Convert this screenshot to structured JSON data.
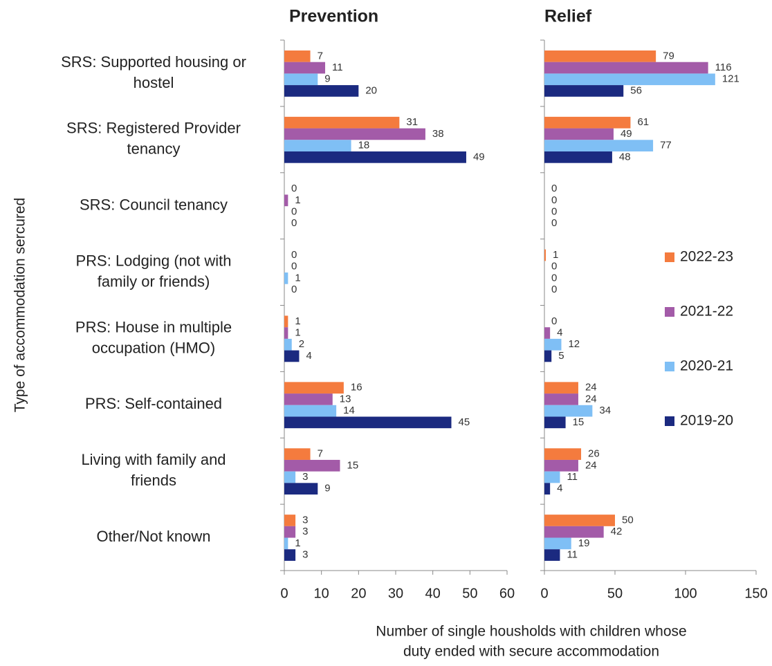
{
  "chart_data": [
    {
      "type": "bar",
      "orientation": "horizontal",
      "title": "Prevention",
      "ylabel": "Type of accommodation sercured",
      "xlabel": [
        "Number of single  housholds with children whose",
        "duty ended with secure accommodation"
      ],
      "categories": [
        [
          "SRS: Supported housing or",
          "hostel"
        ],
        [
          "SRS: Registered Provider",
          "tenancy"
        ],
        [
          "SRS: Council tenancy"
        ],
        [
          "PRS: Lodging (not with",
          "family or friends)"
        ],
        [
          "PRS: House in multiple",
          "occupation (HMO)"
        ],
        [
          "PRS: Self-contained"
        ],
        [
          "Living with family and",
          "friends"
        ],
        [
          "Other/Not known"
        ]
      ],
      "series": [
        {
          "color": "#f47b3e",
          "values": [
            7,
            31,
            0,
            0,
            1,
            16,
            7,
            3
          ]
        },
        {
          "color": "#a35ba8",
          "values": [
            11,
            38,
            1,
            0,
            1,
            13,
            15,
            3
          ]
        },
        {
          "color": "#7fbff5",
          "values": [
            9,
            18,
            0,
            1,
            2,
            14,
            3,
            1
          ]
        },
        {
          "color": "#1b2a80",
          "values": [
            20,
            49,
            0,
            0,
            4,
            45,
            9,
            3
          ]
        }
      ],
      "xlim": [
        0,
        60
      ],
      "xticks": [
        0,
        10,
        20,
        30,
        40,
        50,
        60
      ]
    },
    {
      "type": "bar",
      "orientation": "horizontal",
      "title": "Relief",
      "legend": "right",
      "series": [
        {
          "name": "2022-23",
          "color": "#f47b3e",
          "values": [
            79,
            61,
            0,
            1,
            0,
            24,
            26,
            50
          ]
        },
        {
          "name": "2021-22",
          "color": "#a35ba8",
          "values": [
            116,
            49,
            0,
            0,
            4,
            24,
            24,
            42
          ]
        },
        {
          "name": "2020-21",
          "color": "#7fbff5",
          "values": [
            121,
            77,
            0,
            0,
            12,
            34,
            11,
            19
          ]
        },
        {
          "name": "2019-20",
          "color": "#1b2a80",
          "values": [
            56,
            48,
            0,
            0,
            5,
            15,
            4,
            11
          ]
        }
      ],
      "xlim": [
        0,
        150
      ],
      "xticks": [
        0,
        50,
        100,
        150
      ]
    }
  ]
}
